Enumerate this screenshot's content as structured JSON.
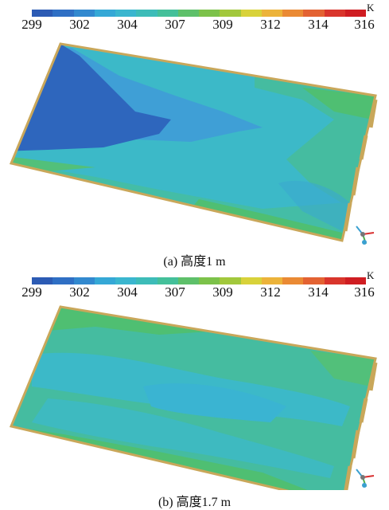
{
  "colorbar": {
    "unit": "K",
    "ticks": [
      "299",
      "302",
      "304",
      "307",
      "309",
      "312",
      "314",
      "316"
    ],
    "colors": [
      "#2c5bb4",
      "#2f6fc4",
      "#3289cf",
      "#35a8d6",
      "#3ab6cf",
      "#3dbcb8",
      "#44c09a",
      "#5ec06a",
      "#7cc24a",
      "#a2c83c",
      "#d8d23a",
      "#ecb33a",
      "#ea8a34",
      "#e36232",
      "#d9352c",
      "#cf1d22"
    ]
  },
  "panels": [
    {
      "caption": "(a) 高度1 m"
    },
    {
      "caption": "(b) 高度1.7 m"
    }
  ],
  "palette": {
    "cold": "#2e66bd",
    "mid_blue": "#3d9ed6",
    "cyan": "#3cb9c8",
    "teal": "#3fbaa0",
    "green": "#4fbf72",
    "edge": "#c9a75a"
  }
}
